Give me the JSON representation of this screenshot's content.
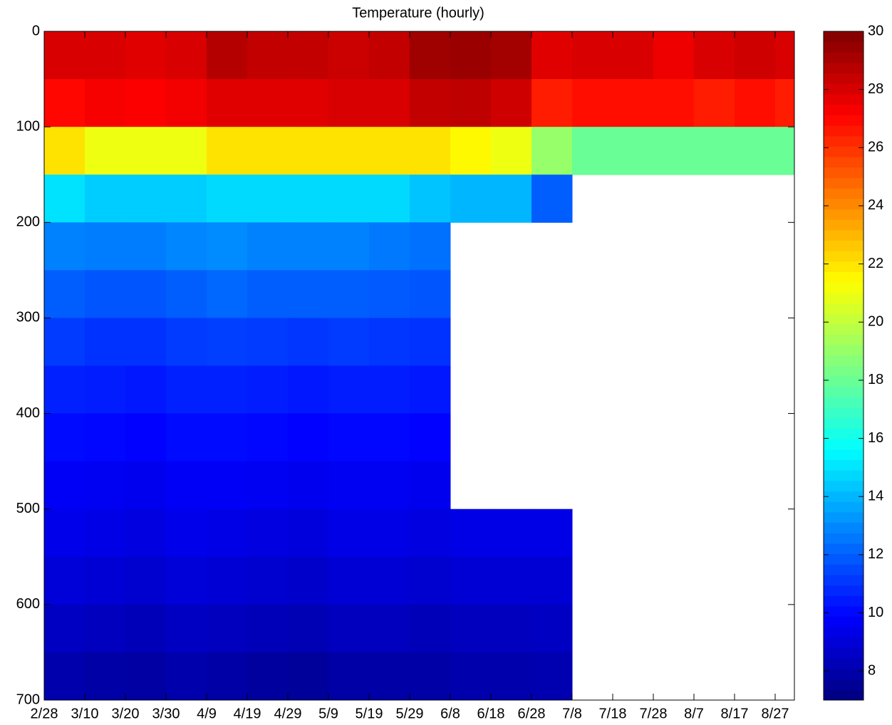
{
  "chart_data": {
    "type": "heatmap",
    "title": "Temperature (hourly)",
    "categories": [
      "2/28",
      "3/10",
      "3/20",
      "3/30",
      "4/9",
      "4/19",
      "4/29",
      "5/9",
      "5/19",
      "5/29",
      "6/8",
      "6/18",
      "6/28",
      "7/8",
      "7/18",
      "7/28",
      "8/7",
      "8/17",
      "8/27"
    ],
    "y_bins": [
      0,
      50,
      100,
      150,
      200,
      250,
      300,
      350,
      400,
      450,
      500,
      550,
      600,
      650,
      700
    ],
    "ylim": [
      0,
      700
    ],
    "yticks": [
      0,
      100,
      200,
      300,
      400,
      500,
      600,
      700
    ],
    "y_reversed": true,
    "colormap": "jet",
    "clim": [
      7,
      30
    ],
    "colorbar_ticks": [
      8,
      10,
      12,
      14,
      16,
      18,
      20,
      22,
      24,
      26,
      28,
      30
    ],
    "values": [
      [
        28,
        28,
        27.8,
        28,
        28.8,
        28.5,
        28.5,
        28.3,
        28.5,
        29.3,
        29.4,
        29.2,
        27.8,
        28,
        28,
        27.5,
        28,
        28.2,
        28
      ],
      [
        27,
        27.3,
        27.2,
        27.4,
        27.8,
        27.8,
        27.8,
        28,
        28,
        28.5,
        28.6,
        28.2,
        26.5,
        26.8,
        26.8,
        26.8,
        26.5,
        26.8,
        26.5
      ],
      [
        22,
        21,
        21,
        21,
        22,
        22,
        22,
        22,
        22,
        22,
        21.5,
        21,
        19,
        18,
        18,
        18,
        18,
        18,
        18
      ],
      [
        15,
        14.5,
        14.5,
        14.5,
        14.8,
        14.8,
        14.8,
        14.8,
        14.8,
        14.3,
        14,
        14,
        12,
        null,
        null,
        null,
        null,
        null,
        null
      ],
      [
        12.8,
        12.7,
        12.7,
        12.9,
        13,
        12.8,
        12.8,
        12.8,
        12.6,
        12.4,
        null,
        null,
        null,
        null,
        null,
        null,
        null,
        null,
        null
      ],
      [
        12,
        11.8,
        11.8,
        12,
        12.2,
        12,
        12,
        12,
        11.9,
        11.8,
        null,
        null,
        null,
        null,
        null,
        null,
        null,
        null,
        null
      ],
      [
        11.2,
        11,
        11,
        11.2,
        11.3,
        11.2,
        11.1,
        11.2,
        11.1,
        11,
        null,
        null,
        null,
        null,
        null,
        null,
        null,
        null,
        null
      ],
      [
        10.6,
        10.5,
        10.4,
        10.6,
        10.6,
        10.5,
        10.4,
        10.5,
        10.5,
        10.4,
        null,
        null,
        null,
        null,
        null,
        null,
        null,
        null,
        null
      ],
      [
        10.1,
        10,
        9.9,
        10.1,
        10.1,
        10,
        9.9,
        10,
        10,
        9.9,
        null,
        null,
        null,
        null,
        null,
        null,
        null,
        null,
        null
      ],
      [
        9.7,
        9.6,
        9.5,
        9.7,
        9.7,
        9.6,
        9.5,
        9.6,
        9.6,
        9.5,
        null,
        null,
        null,
        null,
        null,
        null,
        null,
        null,
        null
      ],
      [
        9.4,
        9.3,
        9.2,
        9.4,
        9.3,
        9.2,
        9.1,
        9.3,
        9.3,
        9.2,
        9.3,
        9.3,
        9.3,
        null,
        null,
        null,
        null,
        null,
        null
      ],
      [
        9,
        8.9,
        8.8,
        9,
        8.9,
        8.8,
        8.7,
        8.9,
        8.9,
        8.8,
        8.9,
        8.9,
        8.9,
        null,
        null,
        null,
        null,
        null,
        null
      ],
      [
        8.5,
        8.4,
        8.3,
        8.5,
        8.4,
        8.3,
        8.2,
        8.4,
        8.4,
        8.3,
        8.4,
        8.4,
        8.5,
        null,
        null,
        null,
        null,
        null,
        null
      ],
      [
        8,
        7.9,
        7.8,
        8,
        7.9,
        7.7,
        7.6,
        7.9,
        7.9,
        7.9,
        8,
        8,
        8.1,
        null,
        null,
        null,
        null,
        null,
        null
      ]
    ]
  }
}
